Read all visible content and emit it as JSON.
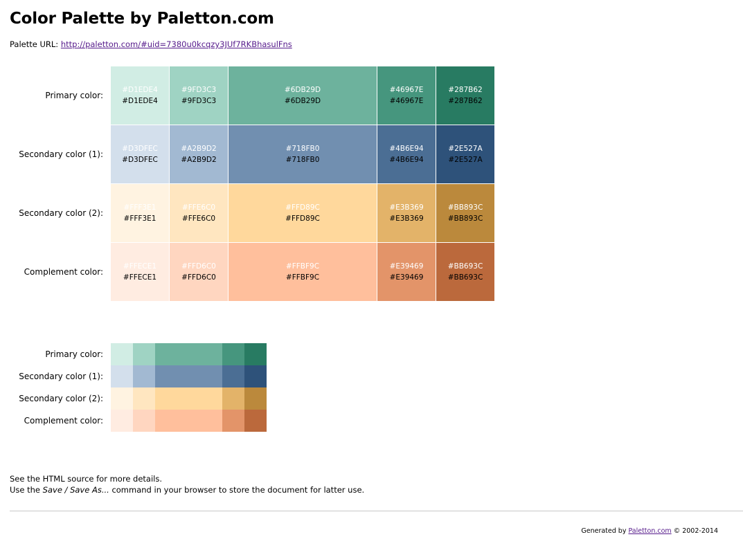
{
  "page": {
    "title": "Color Palette by Paletton.com",
    "url_label": "Palette URL:",
    "url_text": "http://paletton.com/#uid=7380u0kcqzy3JUf7RKBhasulFns"
  },
  "palette": {
    "rows": [
      {
        "label": "Primary color:",
        "colors": [
          "#D1EDE4",
          "#9FD3C3",
          "#6DB29D",
          "#46967E",
          "#287B62"
        ]
      },
      {
        "label": "Secondary color (1):",
        "colors": [
          "#D3DFEC",
          "#A2B9D2",
          "#718FB0",
          "#4B6E94",
          "#2E527A"
        ]
      },
      {
        "label": "Secondary color (2):",
        "colors": [
          "#FFF3E1",
          "#FFE6C0",
          "#FFD89C",
          "#E3B369",
          "#BB893C"
        ]
      },
      {
        "label": "Complement color:",
        "colors": [
          "#FFECE1",
          "#FFD6C0",
          "#FFBF9C",
          "#E39469",
          "#BB693C"
        ]
      }
    ]
  },
  "notes": {
    "line1": "See the HTML source for more details.",
    "line2_prefix": "Use the ",
    "line2_em": "Save / Save As...",
    "line2_suffix": " command in your browser to store the document for latter use."
  },
  "footer": {
    "prefix": "Generated by ",
    "link_text": "Paletton.com",
    "suffix": " © 2002-2014"
  }
}
